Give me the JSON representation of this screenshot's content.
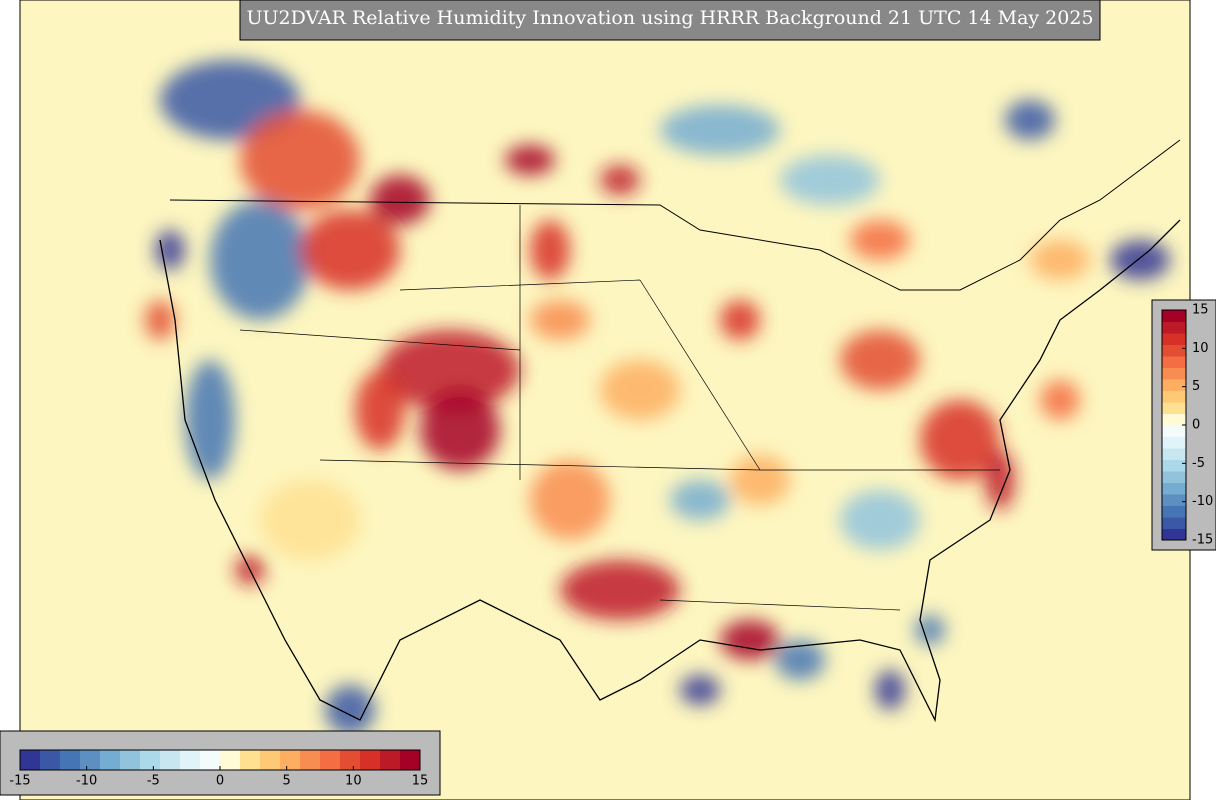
{
  "title": "UU2DVAR Relative Humidity Innovation using HRRR Background 21 UTC 14 May 2025",
  "colorbar": {
    "lim": [
      -15,
      15
    ],
    "ticks": [
      -15,
      -10,
      -5,
      0,
      5,
      10,
      15
    ],
    "colors": [
      "#313695",
      "#3b58a6",
      "#4575b4",
      "#5e8fc3",
      "#74add1",
      "#91c3dd",
      "#abd9e9",
      "#c8e6f0",
      "#e0f3f8",
      "#f3fbfb",
      "#fffbd6",
      "#fee090",
      "#fdc977",
      "#fdae61",
      "#f88d52",
      "#f46d43",
      "#e34e33",
      "#d73027",
      "#bd1a28",
      "#a50026"
    ]
  }
}
